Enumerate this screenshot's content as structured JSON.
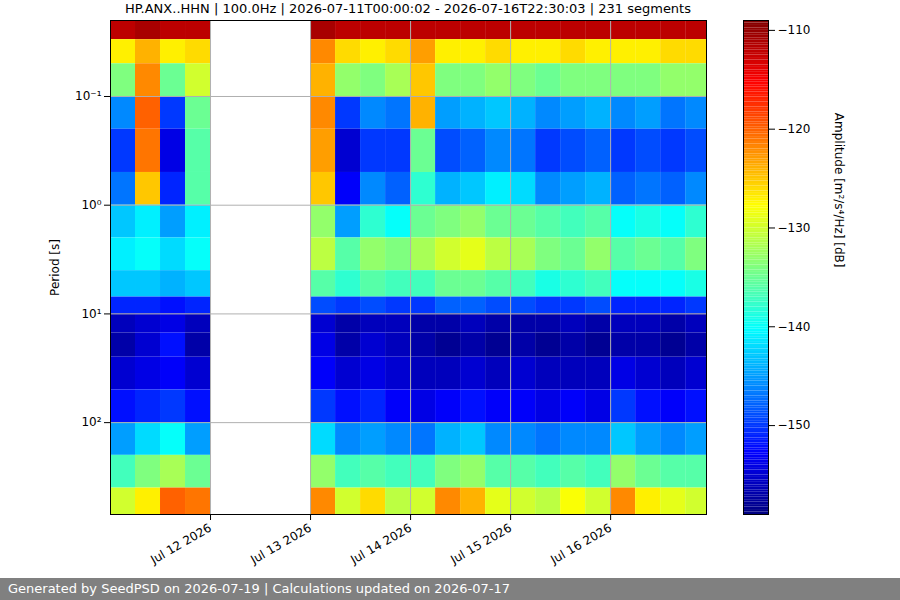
{
  "chart_data": {
    "type": "heatmap",
    "title": "HP.ANX..HHN | 100.0Hz | 2026-07-11T00:00:02 - 2026-07-16T22:30:03 | 231 segments",
    "ylabel": "Period [s]",
    "footer": "Generated by SeedPSD on 2026-07-19 | Calculations updated on 2026-07-17",
    "x": [
      "2026-07-11T00:00",
      "2026-07-11T06:00",
      "2026-07-11T12:00",
      "2026-07-11T18:00",
      "2026-07-12T00:00",
      "2026-07-12T06:00",
      "2026-07-12T12:00",
      "2026-07-12T18:00",
      "2026-07-13T00:00",
      "2026-07-13T06:00",
      "2026-07-13T12:00",
      "2026-07-13T18:00",
      "2026-07-14T00:00",
      "2026-07-14T06:00",
      "2026-07-14T12:00",
      "2026-07-14T18:00",
      "2026-07-15T00:00",
      "2026-07-15T06:00",
      "2026-07-15T12:00",
      "2026-07-15T18:00",
      "2026-07-16T00:00",
      "2026-07-16T06:00",
      "2026-07-16T12:00",
      "2026-07-16T18:00",
      "2026-07-16T23:00"
    ],
    "y": [
      0.02,
      0.03,
      0.05,
      0.1,
      0.2,
      0.5,
      1,
      2,
      4,
      7,
      10,
      15,
      25,
      50,
      100,
      200,
      400,
      700
    ],
    "z": [
      [
        -112,
        -111,
        -112,
        -112,
        null,
        null,
        null,
        null,
        -111,
        -112,
        -112,
        -112,
        -112,
        -112,
        -112,
        -112,
        -112,
        -112,
        -112,
        -112,
        -112,
        -112,
        -112,
        -112
      ],
      [
        -127,
        -124,
        -127,
        -126,
        null,
        null,
        null,
        null,
        -122,
        -126,
        -127,
        -126,
        -123,
        -127,
        -127,
        -126,
        -127,
        -127,
        -126,
        -127,
        -127,
        -127,
        -126,
        -126
      ],
      [
        -134,
        -122,
        -135,
        -130,
        null,
        null,
        null,
        null,
        -124,
        -133,
        -134,
        -132,
        -125,
        -134,
        -134,
        -133,
        -134,
        -135,
        -134,
        -134,
        -134,
        -134,
        -133,
        -133
      ],
      [
        -146,
        -120,
        -150,
        -135,
        null,
        null,
        null,
        null,
        -122,
        -150,
        -146,
        -147,
        -124,
        -145,
        -144,
        -143,
        -144,
        -146,
        -145,
        -144,
        -146,
        -145,
        -147,
        -146
      ],
      [
        -150,
        -121,
        -154,
        -136,
        null,
        null,
        null,
        null,
        -123,
        -155,
        -150,
        -150,
        -135,
        -149,
        -148,
        -146,
        -147,
        -150,
        -149,
        -148,
        -150,
        -149,
        -150,
        -149
      ],
      [
        -147,
        -125,
        -151,
        -136,
        null,
        null,
        null,
        null,
        -125,
        -153,
        -146,
        -148,
        -138,
        -144,
        -143,
        -141,
        -142,
        -146,
        -145,
        -144,
        -148,
        -147,
        -148,
        -146
      ],
      [
        -143,
        -141,
        -145,
        -141,
        null,
        null,
        null,
        null,
        -133,
        -145,
        -138,
        -140,
        -135,
        -134,
        -133,
        -135,
        -135,
        -136,
        -137,
        -136,
        -140,
        -139,
        -140,
        -138
      ],
      [
        -141,
        -140,
        -142,
        -140,
        null,
        null,
        null,
        null,
        -131,
        -136,
        -133,
        -134,
        -132,
        -130,
        -129,
        -131,
        -132,
        -134,
        -135,
        -133,
        -136,
        -135,
        -136,
        -134
      ],
      [
        -143,
        -143,
        -144,
        -143,
        null,
        null,
        null,
        null,
        -136,
        -138,
        -136,
        -137,
        -137,
        -135,
        -135,
        -136,
        -137,
        -139,
        -138,
        -137,
        -140,
        -140,
        -140,
        -139
      ],
      [
        -151,
        -151,
        -152,
        -151,
        null,
        null,
        null,
        null,
        -149,
        -150,
        -149,
        -150,
        -150,
        -148,
        -148,
        -149,
        -149,
        -150,
        -150,
        -149,
        -151,
        -151,
        -151,
        -150
      ],
      [
        -156,
        -155,
        -154,
        -156,
        null,
        null,
        null,
        null,
        -155,
        -157,
        -156,
        -156,
        -157,
        -157,
        -156,
        -157,
        -157,
        -157,
        -156,
        -157,
        -156,
        -156,
        -157,
        -156
      ],
      [
        -157,
        -155,
        -152,
        -157,
        null,
        null,
        null,
        null,
        -154,
        -157,
        -155,
        -156,
        -157,
        -158,
        -157,
        -158,
        -157,
        -158,
        -157,
        -158,
        -157,
        -157,
        -158,
        -157
      ],
      [
        -155,
        -154,
        -153,
        -155,
        null,
        null,
        null,
        null,
        -153,
        -155,
        -154,
        -155,
        -156,
        -156,
        -155,
        -156,
        -155,
        -156,
        -156,
        -156,
        -154,
        -155,
        -156,
        -155
      ],
      [
        -152,
        -151,
        -150,
        -152,
        null,
        null,
        null,
        null,
        -150,
        -152,
        -151,
        -153,
        -154,
        -153,
        -152,
        -153,
        -153,
        -154,
        -153,
        -154,
        -150,
        -152,
        -153,
        -152
      ],
      [
        -145,
        -142,
        -140,
        -145,
        null,
        null,
        null,
        null,
        -142,
        -146,
        -145,
        -146,
        -147,
        -144,
        -143,
        -146,
        -146,
        -147,
        -146,
        -146,
        -143,
        -145,
        -146,
        -145
      ],
      [
        -137,
        -134,
        -132,
        -135,
        null,
        null,
        null,
        null,
        -133,
        -137,
        -136,
        -137,
        -137,
        -134,
        -133,
        -136,
        -136,
        -137,
        -136,
        -137,
        -133,
        -135,
        -136,
        -136
      ],
      [
        -130,
        -127,
        -120,
        -121,
        null,
        null,
        null,
        null,
        -122,
        -130,
        -126,
        -131,
        -130,
        -122,
        -124,
        -129,
        -130,
        -131,
        -128,
        -130,
        -122,
        -127,
        -129,
        -130
      ]
    ],
    "xlim": [
      "2026-07-11T00:00",
      "2026-07-16T23:00"
    ],
    "xticks": [
      {
        "value": "2026-07-12T00:00",
        "label": "Jul 12 2026"
      },
      {
        "value": "2026-07-13T00:00",
        "label": "Jul 13 2026"
      },
      {
        "value": "2026-07-14T00:00",
        "label": "Jul 14 2026"
      },
      {
        "value": "2026-07-15T00:00",
        "label": "Jul 15 2026"
      },
      {
        "value": "2026-07-16T00:00",
        "label": "Jul 16 2026"
      }
    ],
    "ylim": [
      0.02,
      700
    ],
    "yticks": [
      {
        "value": 0.1,
        "label": "10⁻¹"
      },
      {
        "value": 1,
        "label": "10⁰"
      },
      {
        "value": 10,
        "label": "10¹"
      },
      {
        "value": 100,
        "label": "10²"
      }
    ],
    "log": "y",
    "grid": true,
    "colorbar": {
      "label": "Amplitude [m²/s⁴/Hz] [dB]",
      "range": [
        -159,
        -109
      ],
      "ticks": [
        -150,
        -140,
        -130,
        -120,
        -110
      ]
    }
  }
}
